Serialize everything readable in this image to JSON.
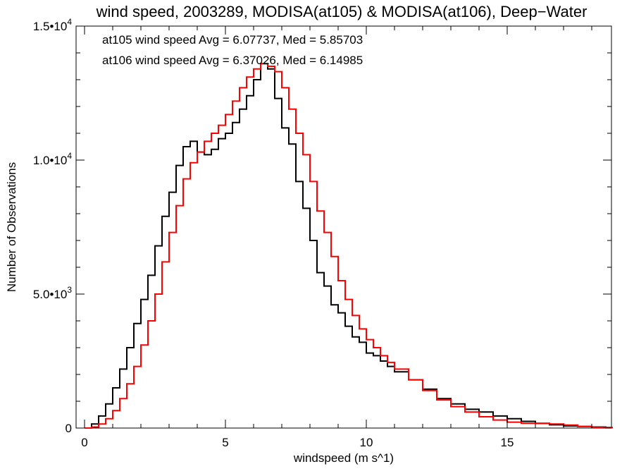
{
  "chart_data": {
    "type": "line",
    "title": "wind speed, 2003289, MODISA(at105) & MODISA(at106), Deep−Water",
    "xlabel": "windspeed (m s^1)",
    "ylabel": "Number of Observations",
    "xlim": [
      -0.3,
      18.7
    ],
    "ylim": [
      0,
      15000
    ],
    "grid": false,
    "x_ticks": [
      {
        "value": 0,
        "label": "0"
      },
      {
        "value": 5,
        "label": "5"
      },
      {
        "value": 10,
        "label": "10"
      },
      {
        "value": 15,
        "label": "15"
      }
    ],
    "y_ticks": [
      {
        "value": 0,
        "mant": "0",
        "exp": ""
      },
      {
        "value": 5000,
        "mant": "5.0•10",
        "exp": "3"
      },
      {
        "value": 10000,
        "mant": "1.0•10",
        "exp": "4"
      },
      {
        "value": 15000,
        "mant": "1.5•10",
        "exp": "4"
      }
    ],
    "annotations": [
      {
        "text": "at105 wind speed Avg = 6.07737, Med = 5.85703",
        "color": "#000000"
      },
      {
        "text": "at106 wind speed Avg = 6.37026, Med = 6.14985",
        "color": "#ff0000"
      }
    ],
    "series": [
      {
        "color": "#000000",
        "x": [
          0,
          0.25,
          0.5,
          0.75,
          1,
          1.25,
          1.5,
          1.75,
          2,
          2.25,
          2.5,
          2.75,
          3,
          3.25,
          3.5,
          3.75,
          4,
          4.25,
          4.5,
          4.75,
          5,
          5.25,
          5.5,
          5.75,
          6,
          6.25,
          6.5,
          6.75,
          7,
          7.25,
          7.5,
          7.75,
          8,
          8.25,
          8.5,
          8.75,
          9,
          9.25,
          9.5,
          9.75,
          10,
          10.25,
          10.5,
          10.75,
          11,
          11.5,
          12,
          12.5,
          13,
          13.5,
          14,
          14.5,
          15,
          15.5,
          16,
          16.5,
          17,
          17.5,
          18,
          18.5
        ],
        "y": [
          0,
          150,
          450,
          900,
          1500,
          2200,
          3000,
          3900,
          4800,
          5700,
          6800,
          7900,
          8800,
          9800,
          10500,
          10700,
          10300,
          10200,
          10400,
          10800,
          11000,
          11400,
          11900,
          12400,
          13000,
          13600,
          13400,
          12300,
          11200,
          10600,
          9200,
          8200,
          7000,
          5800,
          5300,
          4600,
          4300,
          3800,
          3400,
          3200,
          2800,
          2700,
          2500,
          2300,
          2100,
          1800,
          1450,
          1100,
          900,
          700,
          600,
          450,
          350,
          250,
          180,
          120,
          80,
          60,
          40,
          20
        ]
      },
      {
        "color": "#ff0000",
        "x": [
          0,
          0.25,
          0.5,
          0.75,
          1,
          1.25,
          1.5,
          1.75,
          2,
          2.25,
          2.5,
          2.75,
          3,
          3.25,
          3.5,
          3.75,
          4,
          4.25,
          4.5,
          4.75,
          5,
          5.25,
          5.5,
          5.75,
          6,
          6.25,
          6.5,
          6.75,
          7,
          7.25,
          7.5,
          7.75,
          8,
          8.25,
          8.5,
          8.75,
          9,
          9.25,
          9.5,
          9.75,
          10,
          10.25,
          10.5,
          10.75,
          11,
          11.5,
          12,
          12.5,
          13,
          13.5,
          14,
          14.5,
          15,
          15.5,
          16,
          16.5,
          17,
          17.5,
          18,
          18.5
        ],
        "y": [
          0,
          40,
          150,
          350,
          650,
          1100,
          1650,
          2300,
          3100,
          4000,
          5000,
          6200,
          7300,
          8300,
          9300,
          9900,
          10300,
          10700,
          11000,
          11300,
          11700,
          12200,
          12700,
          13100,
          13400,
          13600,
          13500,
          13300,
          12700,
          11900,
          11000,
          10200,
          9200,
          8100,
          7300,
          6400,
          5500,
          4800,
          4200,
          3700,
          3300,
          3000,
          2700,
          2450,
          2200,
          1800,
          1400,
          1050,
          800,
          600,
          420,
          300,
          220,
          180,
          170,
          150,
          110,
          60,
          30,
          10
        ]
      }
    ]
  }
}
